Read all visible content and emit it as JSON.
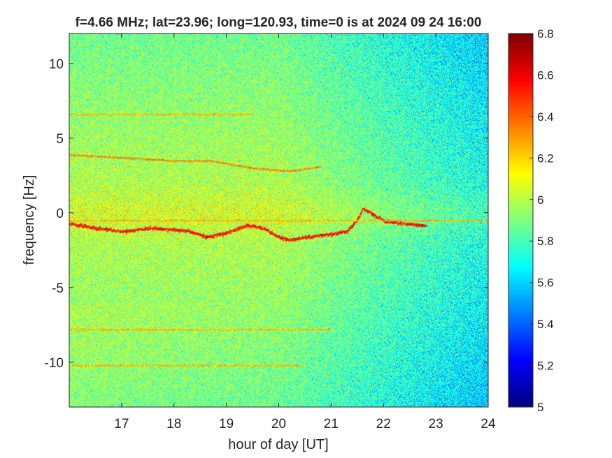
{
  "chart_data": {
    "type": "heatmap",
    "title": "f=4.66 MHz;  lat=23.96; long=120.93, time=0 is at 2024 09 24 16:00",
    "xlabel": "hour of day [UT]",
    "ylabel": "frequency [Hz]",
    "xlim": [
      16,
      24
    ],
    "ylim": [
      -13,
      12
    ],
    "xticks": [
      17,
      18,
      19,
      20,
      21,
      22,
      23,
      24
    ],
    "yticks": [
      10,
      5,
      0,
      -5,
      -10
    ],
    "colorbar": {
      "limits": [
        5,
        6.8
      ],
      "ticks": [
        5,
        5.2,
        5.4,
        5.6,
        5.8,
        6,
        6.2,
        6.4,
        6.6,
        6.8
      ],
      "colormap": "jet"
    },
    "features": [
      {
        "label": "main trace",
        "points": [
          [
            16.0,
            -0.7
          ],
          [
            16.5,
            -1.0
          ],
          [
            17.0,
            -1.2
          ],
          [
            17.5,
            -1.0
          ],
          [
            18.0,
            -1.1
          ],
          [
            18.3,
            -1.2
          ],
          [
            18.6,
            -1.6
          ],
          [
            19.0,
            -1.3
          ],
          [
            19.4,
            -0.8
          ],
          [
            19.7,
            -1.0
          ],
          [
            20.0,
            -1.6
          ],
          [
            20.2,
            -1.8
          ],
          [
            20.5,
            -1.6
          ],
          [
            21.0,
            -1.4
          ],
          [
            21.3,
            -1.2
          ],
          [
            21.5,
            -0.4
          ],
          [
            21.6,
            0.3
          ],
          [
            21.8,
            -0.1
          ],
          [
            22.0,
            -0.5
          ],
          [
            22.4,
            -0.7
          ],
          [
            22.8,
            -0.8
          ]
        ]
      },
      {
        "label": "upper trace",
        "points": [
          [
            16.0,
            3.9
          ],
          [
            17.0,
            3.7
          ],
          [
            18.0,
            3.5
          ],
          [
            18.7,
            3.5
          ],
          [
            19.5,
            3.0
          ],
          [
            20.2,
            2.8
          ],
          [
            20.8,
            3.1
          ]
        ]
      },
      {
        "label": "flat line",
        "points": [
          [
            16.0,
            -0.5
          ],
          [
            24.0,
            -0.5
          ]
        ]
      },
      {
        "label": "flat line",
        "points": [
          [
            16.0,
            -7.8
          ],
          [
            21.0,
            -7.8
          ]
        ]
      },
      {
        "label": "flat line",
        "points": [
          [
            16.0,
            6.6
          ],
          [
            19.5,
            6.6
          ]
        ]
      },
      {
        "label": "flat line",
        "points": [
          [
            16.0,
            -10.2
          ],
          [
            20.5,
            -10.2
          ]
        ]
      }
    ]
  }
}
